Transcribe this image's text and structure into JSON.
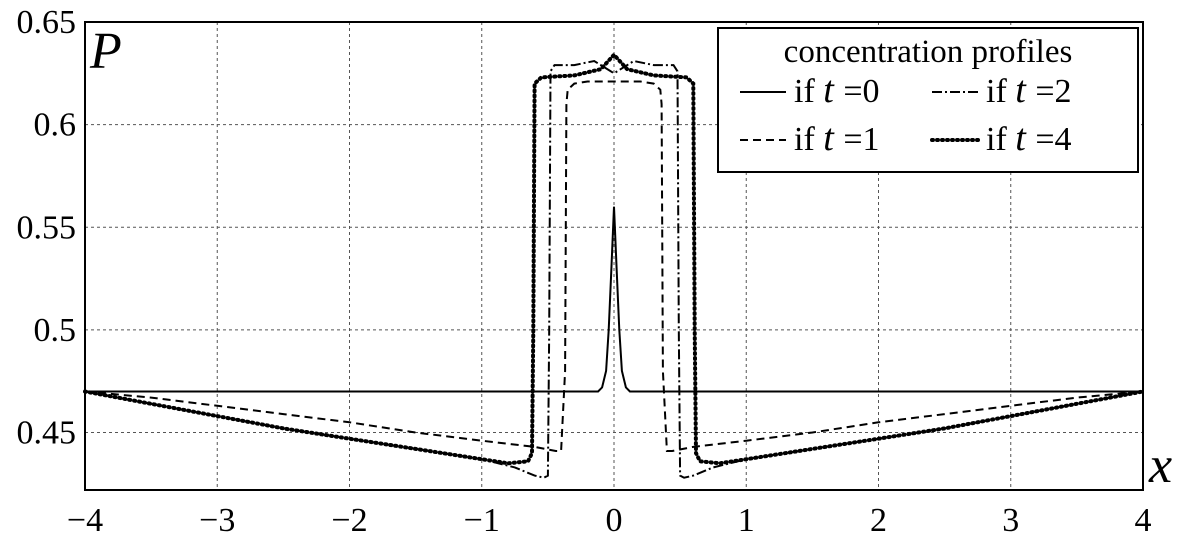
{
  "chart_data": {
    "type": "line",
    "ylabel": "P",
    "xlabel": "x",
    "xlim": [
      -4,
      4
    ],
    "ylim": [
      0.422,
      0.65
    ],
    "x_ticks": [
      -4,
      -3,
      -2,
      -1,
      0,
      1,
      2,
      3,
      4
    ],
    "y_ticks": [
      0.45,
      0.5,
      0.55,
      0.6,
      0.65
    ],
    "x_tick_labels": [
      "−4",
      "−3",
      "−2",
      "−1",
      "0",
      "1",
      "2",
      "3",
      "4"
    ],
    "y_tick_labels": [
      "0.45",
      "0.5",
      "0.55",
      "0.6",
      "0.65"
    ],
    "grid": true,
    "legend": {
      "title": "concentration profiles",
      "placement": "top-right",
      "prefix": "if",
      "variable": "t",
      "equals": "="
    },
    "series": [
      {
        "name": "0",
        "style": "solid",
        "points": [
          [
            -4,
            0.47
          ],
          [
            -0.12,
            0.47
          ],
          [
            -0.09,
            0.472
          ],
          [
            -0.06,
            0.48
          ],
          [
            -0.04,
            0.5
          ],
          [
            -0.02,
            0.53
          ],
          [
            0,
            0.56
          ],
          [
            0.02,
            0.53
          ],
          [
            0.04,
            0.5
          ],
          [
            0.06,
            0.48
          ],
          [
            0.09,
            0.472
          ],
          [
            0.12,
            0.47
          ],
          [
            4,
            0.47
          ]
        ]
      },
      {
        "name": "1",
        "style": "dashed",
        "points": [
          [
            -4,
            0.47
          ],
          [
            -3.5,
            0.467
          ],
          [
            -3,
            0.463
          ],
          [
            -2.5,
            0.459
          ],
          [
            -2,
            0.455
          ],
          [
            -1.5,
            0.45
          ],
          [
            -1,
            0.446
          ],
          [
            -0.6,
            0.443
          ],
          [
            -0.44,
            0.441
          ],
          [
            -0.4,
            0.441
          ],
          [
            -0.37,
            0.48
          ],
          [
            -0.36,
            0.61
          ],
          [
            -0.35,
            0.617
          ],
          [
            -0.3,
            0.62
          ],
          [
            -0.2,
            0.621
          ],
          [
            0,
            0.621
          ],
          [
            0.2,
            0.621
          ],
          [
            0.3,
            0.62
          ],
          [
            0.35,
            0.617
          ],
          [
            0.36,
            0.61
          ],
          [
            0.37,
            0.48
          ],
          [
            0.4,
            0.441
          ],
          [
            0.44,
            0.441
          ],
          [
            0.6,
            0.443
          ],
          [
            1,
            0.446
          ],
          [
            1.5,
            0.45
          ],
          [
            2,
            0.455
          ],
          [
            2.5,
            0.459
          ],
          [
            3,
            0.463
          ],
          [
            3.5,
            0.467
          ],
          [
            4,
            0.47
          ]
        ]
      },
      {
        "name": "2",
        "style": "dashdot",
        "points": [
          [
            -4,
            0.47
          ],
          [
            -3.5,
            0.464
          ],
          [
            -3,
            0.458
          ],
          [
            -2.5,
            0.452
          ],
          [
            -2,
            0.447
          ],
          [
            -1.5,
            0.442
          ],
          [
            -1,
            0.437
          ],
          [
            -0.75,
            0.433
          ],
          [
            -0.6,
            0.429
          ],
          [
            -0.53,
            0.428
          ],
          [
            -0.5,
            0.429
          ],
          [
            -0.49,
            0.5
          ],
          [
            -0.48,
            0.626
          ],
          [
            -0.45,
            0.629
          ],
          [
            -0.3,
            0.629
          ],
          [
            -0.15,
            0.631
          ],
          [
            0,
            0.625
          ],
          [
            0.15,
            0.631
          ],
          [
            0.3,
            0.629
          ],
          [
            0.45,
            0.629
          ],
          [
            0.48,
            0.626
          ],
          [
            0.49,
            0.5
          ],
          [
            0.5,
            0.429
          ],
          [
            0.53,
            0.428
          ],
          [
            0.6,
            0.429
          ],
          [
            0.75,
            0.433
          ],
          [
            1,
            0.437
          ],
          [
            1.5,
            0.442
          ],
          [
            2,
            0.447
          ],
          [
            2.5,
            0.452
          ],
          [
            3,
            0.458
          ],
          [
            3.5,
            0.464
          ],
          [
            4,
            0.47
          ]
        ]
      },
      {
        "name": "4",
        "style": "dotted",
        "points": [
          [
            -4,
            0.47
          ],
          [
            -3.5,
            0.464
          ],
          [
            -3,
            0.458
          ],
          [
            -2.5,
            0.452
          ],
          [
            -2,
            0.447
          ],
          [
            -1.5,
            0.442
          ],
          [
            -1,
            0.437
          ],
          [
            -0.8,
            0.435
          ],
          [
            -0.65,
            0.436
          ],
          [
            -0.62,
            0.44
          ],
          [
            -0.61,
            0.5
          ],
          [
            -0.6,
            0.62
          ],
          [
            -0.55,
            0.623
          ],
          [
            -0.3,
            0.624
          ],
          [
            -0.1,
            0.627
          ],
          [
            0,
            0.634
          ],
          [
            0.1,
            0.627
          ],
          [
            0.3,
            0.624
          ],
          [
            0.55,
            0.623
          ],
          [
            0.6,
            0.62
          ],
          [
            0.61,
            0.5
          ],
          [
            0.62,
            0.44
          ],
          [
            0.65,
            0.436
          ],
          [
            0.8,
            0.435
          ],
          [
            1,
            0.437
          ],
          [
            1.5,
            0.442
          ],
          [
            2,
            0.447
          ],
          [
            2.5,
            0.452
          ],
          [
            3,
            0.458
          ],
          [
            3.5,
            0.464
          ],
          [
            4,
            0.47
          ]
        ]
      }
    ]
  }
}
